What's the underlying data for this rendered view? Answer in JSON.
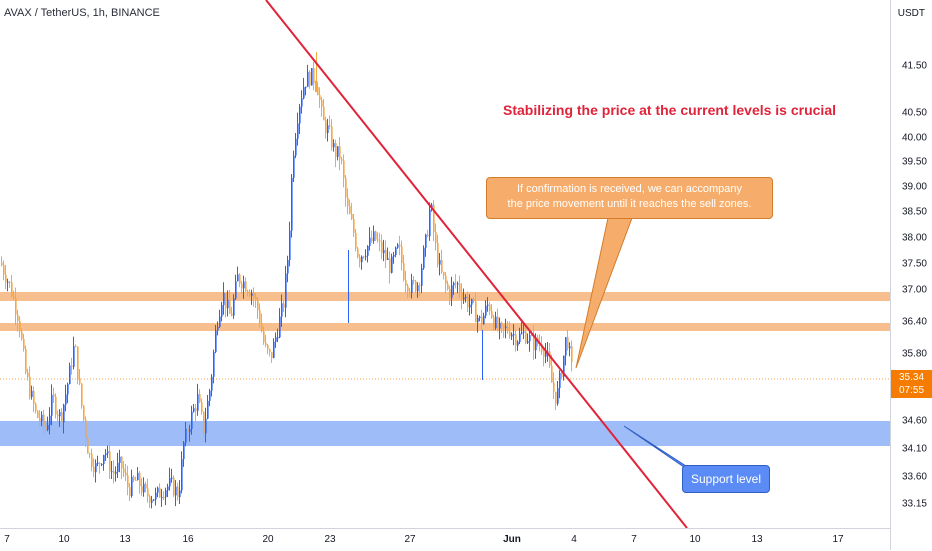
{
  "header": {
    "symbol_title": "AVAX / TetherUS, 1h, BINANCE"
  },
  "price_axis": {
    "currency": "USDT",
    "ticks": [
      "41.50",
      "40.50",
      "40.00",
      "39.50",
      "39.00",
      "38.50",
      "38.00",
      "37.50",
      "37.00",
      "36.40",
      "35.80",
      "34.60",
      "34.10",
      "33.60",
      "33.15"
    ],
    "current_price": "35.34",
    "countdown": "07:55"
  },
  "time_axis": {
    "ticks": [
      "7",
      "10",
      "13",
      "16",
      "20",
      "23",
      "27",
      "Jun",
      "4",
      "7",
      "10",
      "13",
      "17"
    ]
  },
  "annotations": {
    "headline": "Stabilizing the price at the current levels is crucial",
    "callout_line1": "If confirmation is received, we can accompany",
    "callout_line2": "the price movement until it reaches the sell zones.",
    "support_label": "Support level"
  },
  "colors": {
    "up_candle": "#2962ff",
    "down_candle": "#f5a742",
    "trendline": "#e0233a",
    "resistance_zone": "#f7b47a",
    "support_zone": "#7ea5f6",
    "price_badge": "#f57c00",
    "current_price_line": "#f5a742"
  },
  "chart_data": {
    "type": "candlestick",
    "symbol": "AVAX / TetherUS",
    "timeframe": "1h",
    "exchange": "BINANCE",
    "x_ticks": [
      "7",
      "10",
      "13",
      "16",
      "20",
      "23",
      "27",
      "Jun",
      "4",
      "7",
      "10",
      "13",
      "17"
    ],
    "y_ticks": [
      41.5,
      40.5,
      40.0,
      39.5,
      39.0,
      38.5,
      38.0,
      37.5,
      37.0,
      36.4,
      35.8,
      34.6,
      34.1,
      33.6,
      33.15
    ],
    "y_range": [
      32.9,
      42.6
    ],
    "current_price": 35.34,
    "price_path": [
      [
        0,
        37.6
      ],
      [
        10,
        37.1
      ],
      [
        18,
        36.5
      ],
      [
        25,
        35.4
      ],
      [
        35,
        34.6
      ],
      [
        45,
        34.3
      ],
      [
        52,
        34.9
      ],
      [
        60,
        34.5
      ],
      [
        68,
        35.3
      ],
      [
        74,
        36.0
      ],
      [
        80,
        34.9
      ],
      [
        88,
        33.8
      ],
      [
        96,
        33.5
      ],
      [
        104,
        33.9
      ],
      [
        112,
        33.4
      ],
      [
        120,
        33.6
      ],
      [
        128,
        33.1
      ],
      [
        136,
        33.3
      ],
      [
        145,
        33.0
      ],
      [
        155,
        32.95
      ],
      [
        162,
        33.1
      ],
      [
        170,
        33.2
      ],
      [
        178,
        33.0
      ],
      [
        183,
        34.0
      ],
      [
        190,
        34.5
      ],
      [
        197,
        34.9
      ],
      [
        203,
        34.3
      ],
      [
        210,
        35.2
      ],
      [
        216,
        36.4
      ],
      [
        222,
        37.0
      ],
      [
        230,
        36.5
      ],
      [
        237,
        37.3
      ],
      [
        244,
        37.2
      ],
      [
        252,
        37.0
      ],
      [
        258,
        36.6
      ],
      [
        264,
        35.9
      ],
      [
        270,
        35.7
      ],
      [
        276,
        36.2
      ],
      [
        283,
        36.8
      ],
      [
        288,
        37.9
      ],
      [
        292,
        39.7
      ],
      [
        298,
        40.7
      ],
      [
        304,
        41.2
      ],
      [
        310,
        41.3
      ],
      [
        316,
        41.2
      ],
      [
        322,
        40.4
      ],
      [
        328,
        40.2
      ],
      [
        334,
        39.8
      ],
      [
        340,
        39.7
      ],
      [
        346,
        38.7
      ],
      [
        352,
        38.3
      ],
      [
        358,
        37.7
      ],
      [
        366,
        37.9
      ],
      [
        374,
        38.1
      ],
      [
        382,
        37.8
      ],
      [
        390,
        37.5
      ],
      [
        398,
        37.9
      ],
      [
        404,
        37.3
      ],
      [
        410,
        37.1
      ],
      [
        418,
        37.2
      ],
      [
        426,
        38.1
      ],
      [
        430,
        38.8
      ],
      [
        434,
        38.0
      ],
      [
        440,
        37.4
      ],
      [
        448,
        37.0
      ],
      [
        456,
        37.2
      ],
      [
        464,
        36.9
      ],
      [
        472,
        36.7
      ],
      [
        480,
        36.4
      ],
      [
        488,
        36.8
      ],
      [
        494,
        36.4
      ],
      [
        500,
        36.2
      ],
      [
        508,
        36.3
      ],
      [
        516,
        36.1
      ],
      [
        524,
        36.2
      ],
      [
        532,
        36.0
      ],
      [
        540,
        36.0
      ],
      [
        546,
        35.8
      ],
      [
        552,
        35.1
      ],
      [
        556,
        34.9
      ],
      [
        562,
        35.6
      ],
      [
        566,
        36.2
      ],
      [
        572,
        35.34
      ]
    ],
    "horizontal_zones": [
      {
        "name": "resistance",
        "from": 36.92,
        "to": 37.06
      },
      {
        "name": "resistance",
        "from": 36.32,
        "to": 36.44
      },
      {
        "name": "support",
        "from": 34.15,
        "to": 34.62
      }
    ],
    "trendline": {
      "from": [
        266,
        43.2
      ],
      "to": [
        687,
        32.8
      ]
    },
    "current_price_line": 35.34
  }
}
